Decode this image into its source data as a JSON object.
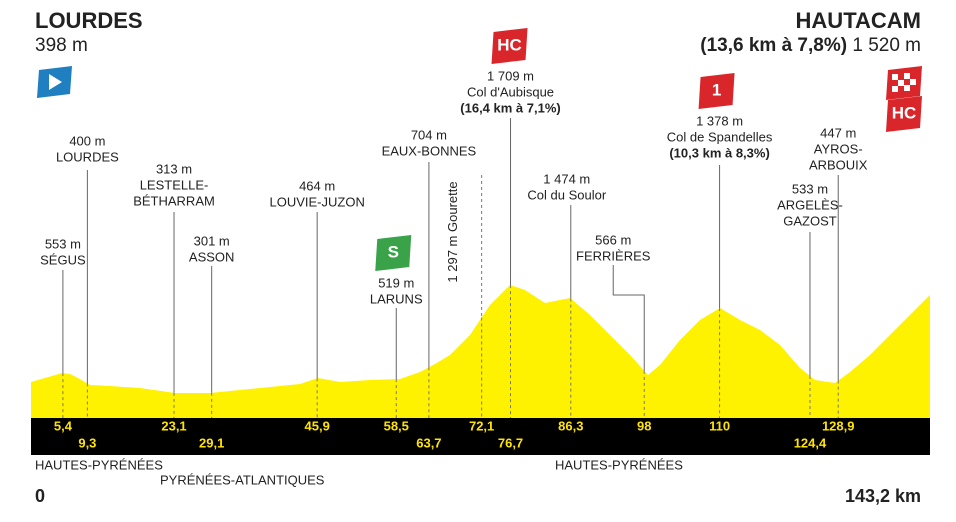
{
  "start": {
    "name": "LOURDES",
    "altitude": "398 m"
  },
  "finish": {
    "name": "HAUTACAM",
    "climb": "(13,6 km à 7,8%)",
    "altitude": "1 520 m",
    "category": "HC"
  },
  "waypoints": [
    {
      "km": {
        "value": 5.4,
        "label": "5,4"
      },
      "lines": [
        "553 m",
        "SÉGUS"
      ]
    },
    {
      "km": {
        "value": 9.3,
        "label": "9,3"
      },
      "lines": [
        "400 m",
        "LOURDES"
      ]
    },
    {
      "km": {
        "value": 23.1,
        "label": "23,1"
      },
      "lines": [
        "313 m",
        "LESTELLE-",
        "BÉTHARRAM"
      ]
    },
    {
      "km": {
        "value": 29.1,
        "label": "29,1"
      },
      "lines": [
        "301 m",
        "ASSON"
      ]
    },
    {
      "km": {
        "value": 45.9,
        "label": "45,9"
      },
      "lines": [
        "464 m",
        "LOUVIE-JUZON"
      ]
    },
    {
      "km": {
        "value": 58.5,
        "label": "58,5"
      },
      "lines": [
        "519 m",
        "LARUNS"
      ],
      "category": "S"
    },
    {
      "km": {
        "value": 63.7,
        "label": "63,7"
      },
      "lines": [
        "704 m",
        "EAUX-BONNES"
      ]
    },
    {
      "km": {
        "value": 72.1,
        "label": "72,1"
      },
      "lines": [
        "1 297 m Gourette"
      ]
    },
    {
      "km": {
        "value": 76.7,
        "label": "76,7"
      },
      "lines": [
        "1 709 m",
        "Col d'Aubisque"
      ],
      "climb": "(16,4 km à 7,1%)",
      "category": "HC"
    },
    {
      "km": {
        "value": 86.3,
        "label": "86,3"
      },
      "lines": [
        "1 474 m",
        "Col du Soulor"
      ]
    },
    {
      "km": {
        "value": 98,
        "label": "98"
      },
      "lines": [
        "566 m",
        "FERRIÈRES"
      ]
    },
    {
      "km": {
        "value": 110,
        "label": "110"
      },
      "lines": [
        "1 378 m",
        "Col de Spandelles"
      ],
      "climb": "(10,3 km à 8,3%)",
      "category": "1"
    },
    {
      "km": {
        "value": 124.4,
        "label": "124,4"
      },
      "lines": [
        "533 m",
        "ARGELÈS-",
        "GAZOST"
      ]
    },
    {
      "km": {
        "value": 128.9,
        "label": "128,9"
      },
      "lines": [
        "447 m",
        "AYROS-",
        "ARBOUIX"
      ]
    }
  ],
  "regions": [
    "HAUTES-PYRÉNÉES",
    "PYRÉNÉES-ATLANTIQUES",
    "HAUTES-PYRÉNÉES"
  ],
  "distance_start": 0,
  "distance": {
    "value": 143.2,
    "label": "143,2 km"
  }
}
